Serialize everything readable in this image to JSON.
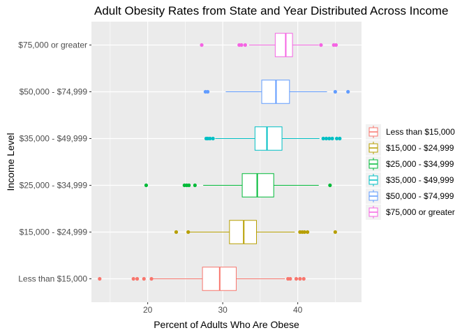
{
  "chart_data": {
    "type": "boxplot",
    "orientation": "horizontal",
    "title": "Adult Obesity Rates from State and Year Distributed Across Income",
    "xlabel": "Percent of Adults Who Are Obese",
    "ylabel": "Income Level",
    "xlim": [
      12.5,
      48.5
    ],
    "x_ticks": [
      20,
      30,
      40
    ],
    "grid": true,
    "legend_position": "right",
    "categories": [
      "Less than $15,000",
      "$15,000 - $24,999",
      "$25,000 - $34,999",
      "$35,000 - $49,999",
      "$50,000 - $74,999",
      "$75,000 or greater"
    ],
    "series": [
      {
        "name": "Less than $15,000",
        "color": "#F8766D",
        "min": 20.5,
        "q1": 27.3,
        "median": 29.6,
        "q3": 31.8,
        "max": 38.3,
        "outliers": [
          13.6,
          18.1,
          18.6,
          19.5,
          20.5,
          38.7,
          39.0,
          39.8,
          40.3,
          40.8
        ]
      },
      {
        "name": "$15,000 - $24,999",
        "color": "#B79F00",
        "min": 25.4,
        "q1": 30.9,
        "median": 32.8,
        "q3": 34.5,
        "max": 39.6,
        "outliers": [
          23.8,
          25.4,
          40.3,
          40.6,
          40.9,
          41.3,
          45.0
        ]
      },
      {
        "name": "$25,000 - $34,999",
        "color": "#00BA38",
        "min": 27.4,
        "q1": 32.6,
        "median": 34.6,
        "q3": 36.8,
        "max": 42.8,
        "outliers": [
          19.8,
          24.9,
          25.2,
          25.5,
          26.3,
          44.3
        ]
      },
      {
        "name": "$35,000 - $49,999",
        "color": "#00BFC4",
        "min": 29.0,
        "q1": 34.3,
        "median": 35.9,
        "q3": 37.9,
        "max": 42.9,
        "outliers": [
          27.8,
          28.0,
          28.3,
          28.7,
          43.4,
          43.8,
          44.2,
          44.6,
          45.2,
          45.6
        ]
      },
      {
        "name": "$50,000 - $74,999",
        "color": "#619CFF",
        "min": 30.4,
        "q1": 35.2,
        "median": 37.1,
        "q3": 38.9,
        "max": 43.9,
        "outliers": [
          27.7,
          28.0,
          45.0,
          46.7
        ]
      },
      {
        "name": "$75,000 or greater",
        "color": "#F564E3",
        "min": 33.5,
        "q1": 37.0,
        "median": 38.4,
        "q3": 39.3,
        "max": 42.8,
        "outliers": [
          27.2,
          32.2,
          32.5,
          33.0,
          43.1,
          44.8,
          45.1
        ]
      }
    ]
  }
}
